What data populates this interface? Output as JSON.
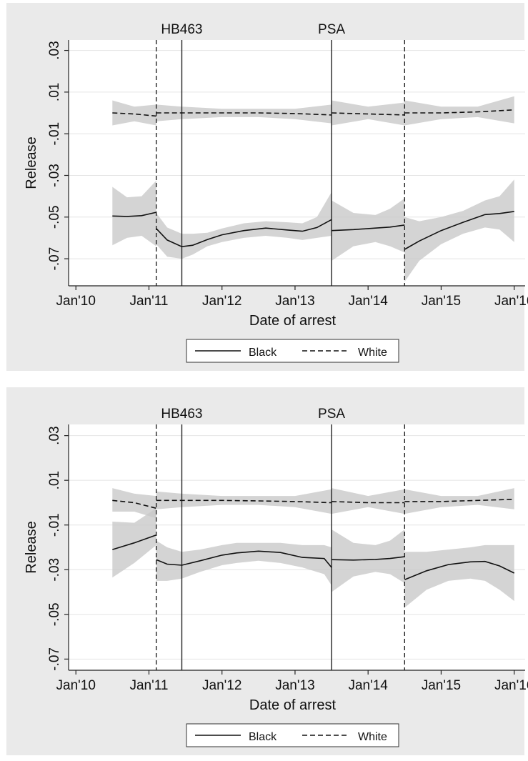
{
  "chart_data": [
    {
      "type": "line",
      "title": "",
      "xlabel": "Date of arrest",
      "ylabel": "Release",
      "xlim": [
        2009.9,
        2016.15
      ],
      "ylim": [
        -0.083,
        0.035
      ],
      "x_ticks": [
        {
          "value": 2010.0,
          "label": "Jan'10"
        },
        {
          "value": 2011.0,
          "label": "Jan'11"
        },
        {
          "value": 2012.0,
          "label": "Jan'12"
        },
        {
          "value": 2013.0,
          "label": "Jan'13"
        },
        {
          "value": 2014.0,
          "label": "Jan'14"
        },
        {
          "value": 2015.0,
          "label": "Jan'15"
        },
        {
          "value": 2016.0,
          "label": "Jan'16"
        }
      ],
      "y_ticks": [
        {
          "value": 0.03,
          "label": ".03"
        },
        {
          "value": 0.01,
          "label": ".01"
        },
        {
          "value": -0.01,
          "label": "-.01"
        },
        {
          "value": -0.03,
          "label": "-.03"
        },
        {
          "value": -0.05,
          "label": "-.05"
        },
        {
          "value": -0.07,
          "label": "-.07"
        }
      ],
      "grid": true,
      "legend": "bottom",
      "vlines": [
        {
          "x": 2011.1,
          "style": "dashed",
          "label": ""
        },
        {
          "x": 2011.45,
          "style": "solid",
          "label": "HB463"
        },
        {
          "x": 2013.5,
          "style": "solid",
          "label": "PSA"
        },
        {
          "x": 2014.5,
          "style": "dashed",
          "label": ""
        }
      ],
      "series": [
        {
          "name": "White",
          "style": "dashed",
          "segments": [
            {
              "x": [
                2010.5,
                2010.8,
                2011.1
              ],
              "y": [
                0.0,
                -0.0005,
                -0.0015
              ],
              "lo": [
                -0.006,
                -0.004,
                -0.006
              ],
              "hi": [
                0.006,
                0.003,
                0.004
              ]
            },
            {
              "x": [
                2011.1,
                2011.45,
                2012.0,
                2012.5,
                2013.0,
                2013.5
              ],
              "y": [
                0.0,
                0.0,
                0.0,
                0.0,
                -0.0003,
                -0.001
              ],
              "lo": [
                -0.004,
                -0.003,
                -0.002,
                -0.002,
                -0.003,
                -0.005
              ],
              "hi": [
                0.004,
                0.003,
                0.002,
                0.002,
                0.002,
                0.004
              ]
            },
            {
              "x": [
                2013.5,
                2014.0,
                2014.5
              ],
              "y": [
                0.0,
                -0.0005,
                -0.001
              ],
              "lo": [
                -0.006,
                -0.003,
                -0.006
              ],
              "hi": [
                0.006,
                0.003,
                0.005
              ]
            },
            {
              "x": [
                2014.5,
                2015.0,
                2015.5,
                2016.0
              ],
              "y": [
                0.0,
                0.0,
                0.0005,
                0.0015
              ],
              "lo": [
                -0.006,
                -0.003,
                -0.002,
                -0.005
              ],
              "hi": [
                0.006,
                0.003,
                0.003,
                0.008
              ]
            }
          ]
        },
        {
          "name": "Black",
          "style": "solid",
          "segments": [
            {
              "x": [
                2010.5,
                2010.7,
                2010.9,
                2011.1
              ],
              "y": [
                -0.0495,
                -0.0497,
                -0.0493,
                -0.0477
              ],
              "lo": [
                -0.0635,
                -0.06,
                -0.059,
                -0.064
              ],
              "hi": [
                -0.0355,
                -0.0405,
                -0.04,
                -0.0325
              ]
            },
            {
              "x": [
                2011.1,
                2011.25,
                2011.45,
                2011.6,
                2011.8,
                2012.0,
                2012.3,
                2012.6,
                2012.9,
                2013.1,
                2013.3,
                2013.5
              ],
              "y": [
                -0.0555,
                -0.061,
                -0.0642,
                -0.0635,
                -0.0608,
                -0.0585,
                -0.0565,
                -0.0553,
                -0.0562,
                -0.0568,
                -0.055,
                -0.0512
              ],
              "lo": [
                -0.063,
                -0.069,
                -0.07,
                -0.068,
                -0.064,
                -0.062,
                -0.06,
                -0.059,
                -0.06,
                -0.061,
                -0.06,
                -0.059
              ],
              "hi": [
                -0.048,
                -0.055,
                -0.058,
                -0.058,
                -0.0575,
                -0.0555,
                -0.053,
                -0.052,
                -0.0525,
                -0.053,
                -0.05,
                -0.038
              ]
            },
            {
              "x": [
                2013.5,
                2013.8,
                2014.1,
                2014.3,
                2014.5
              ],
              "y": [
                -0.0565,
                -0.056,
                -0.0553,
                -0.0548,
                -0.0538
              ],
              "lo": [
                -0.071,
                -0.064,
                -0.062,
                -0.064,
                -0.067
              ],
              "hi": [
                -0.042,
                -0.048,
                -0.049,
                -0.046,
                -0.041
              ]
            },
            {
              "x": [
                2014.5,
                2014.7,
                2015.0,
                2015.3,
                2015.6,
                2015.8,
                2016.0
              ],
              "y": [
                -0.0655,
                -0.0615,
                -0.0565,
                -0.0525,
                -0.0488,
                -0.0483,
                -0.0473
              ],
              "lo": [
                -0.081,
                -0.071,
                -0.063,
                -0.058,
                -0.055,
                -0.056,
                -0.062
              ],
              "hi": [
                -0.05,
                -0.052,
                -0.05,
                -0.047,
                -0.042,
                -0.04,
                -0.032
              ]
            }
          ]
        }
      ]
    },
    {
      "type": "line",
      "title": "",
      "xlabel": "Date of arrest",
      "ylabel": "Release",
      "xlim": [
        2009.9,
        2016.15
      ],
      "ylim": [
        -0.075,
        0.035
      ],
      "x_ticks": [
        {
          "value": 2010.0,
          "label": "Jan'10"
        },
        {
          "value": 2011.0,
          "label": "Jan'11"
        },
        {
          "value": 2012.0,
          "label": "Jan'12"
        },
        {
          "value": 2013.0,
          "label": "Jan'13"
        },
        {
          "value": 2014.0,
          "label": "Jan'14"
        },
        {
          "value": 2015.0,
          "label": "Jan'15"
        },
        {
          "value": 2016.0,
          "label": "Jan'16"
        }
      ],
      "y_ticks": [
        {
          "value": 0.03,
          "label": ".03"
        },
        {
          "value": 0.01,
          "label": ".01"
        },
        {
          "value": -0.01,
          "label": "-.01"
        },
        {
          "value": -0.03,
          "label": "-.03"
        },
        {
          "value": -0.05,
          "label": "-.05"
        },
        {
          "value": -0.07,
          "label": "-.07"
        }
      ],
      "grid": true,
      "legend": "bottom",
      "vlines": [
        {
          "x": 2011.1,
          "style": "dashed",
          "label": ""
        },
        {
          "x": 2011.45,
          "style": "solid",
          "label": "HB463"
        },
        {
          "x": 2013.5,
          "style": "solid",
          "label": "PSA"
        },
        {
          "x": 2014.5,
          "style": "dashed",
          "label": ""
        }
      ],
      "series": [
        {
          "name": "White",
          "style": "dashed",
          "segments": [
            {
              "x": [
                2010.5,
                2010.8,
                2011.1
              ],
              "y": [
                0.001,
                0.0,
                -0.0025
              ],
              "lo": [
                -0.004,
                -0.004,
                -0.007
              ],
              "hi": [
                0.0065,
                0.004,
                0.003
              ]
            },
            {
              "x": [
                2011.1,
                2011.45,
                2012.0,
                2012.5,
                2013.0,
                2013.5
              ],
              "y": [
                0.001,
                0.001,
                0.001,
                0.0008,
                0.0005,
                0.0
              ],
              "lo": [
                -0.003,
                -0.002,
                -0.001,
                -0.001,
                -0.002,
                -0.005
              ],
              "hi": [
                0.005,
                0.004,
                0.003,
                0.003,
                0.003,
                0.006
              ]
            },
            {
              "x": [
                2013.5,
                2014.0,
                2014.5
              ],
              "y": [
                0.0005,
                0.0,
                0.0
              ],
              "lo": [
                -0.005,
                -0.002,
                -0.005
              ],
              "hi": [
                0.0065,
                0.003,
                0.006
              ]
            },
            {
              "x": [
                2014.5,
                2015.0,
                2015.5,
                2016.0
              ],
              "y": [
                0.0005,
                0.0005,
                0.001,
                0.0015
              ],
              "lo": [
                -0.005,
                -0.002,
                -0.001,
                -0.003
              ],
              "hi": [
                0.006,
                0.003,
                0.003,
                0.0065
              ]
            }
          ]
        },
        {
          "name": "Black",
          "style": "solid",
          "segments": [
            {
              "x": [
                2010.5,
                2010.8,
                2011.1
              ],
              "y": [
                -0.021,
                -0.018,
                -0.0145
              ],
              "lo": [
                -0.0335,
                -0.027,
                -0.019
              ],
              "hi": [
                -0.0085,
                -0.009,
                -0.0025
              ]
            },
            {
              "x": [
                2011.1,
                2011.25,
                2011.45,
                2011.7,
                2012.0,
                2012.2,
                2012.5,
                2012.8,
                2013.1,
                2013.4,
                2013.5
              ],
              "y": [
                -0.0255,
                -0.0275,
                -0.028,
                -0.026,
                -0.0235,
                -0.0225,
                -0.0217,
                -0.0223,
                -0.0245,
                -0.025,
                -0.029
              ],
              "lo": [
                -0.035,
                -0.035,
                -0.034,
                -0.031,
                -0.028,
                -0.027,
                -0.026,
                -0.027,
                -0.029,
                -0.032,
                -0.037
              ],
              "hi": [
                -0.017,
                -0.02,
                -0.022,
                -0.021,
                -0.019,
                -0.018,
                -0.018,
                -0.018,
                -0.019,
                -0.019,
                -0.02
              ]
            },
            {
              "x": [
                2013.5,
                2013.8,
                2014.1,
                2014.3,
                2014.5
              ],
              "y": [
                -0.0255,
                -0.0257,
                -0.0254,
                -0.025,
                -0.0242
              ],
              "lo": [
                -0.04,
                -0.033,
                -0.031,
                -0.032,
                -0.036
              ],
              "hi": [
                -0.012,
                -0.018,
                -0.019,
                -0.017,
                -0.012
              ]
            },
            {
              "x": [
                2014.5,
                2014.8,
                2015.1,
                2015.4,
                2015.6,
                2015.8,
                2016.0
              ],
              "y": [
                -0.0345,
                -0.0305,
                -0.0277,
                -0.0265,
                -0.0263,
                -0.0283,
                -0.0315
              ],
              "lo": [
                -0.047,
                -0.039,
                -0.035,
                -0.034,
                -0.035,
                -0.039,
                -0.044
              ],
              "hi": [
                -0.022,
                -0.022,
                -0.021,
                -0.02,
                -0.019,
                -0.019,
                -0.019
              ]
            }
          ]
        }
      ]
    }
  ]
}
